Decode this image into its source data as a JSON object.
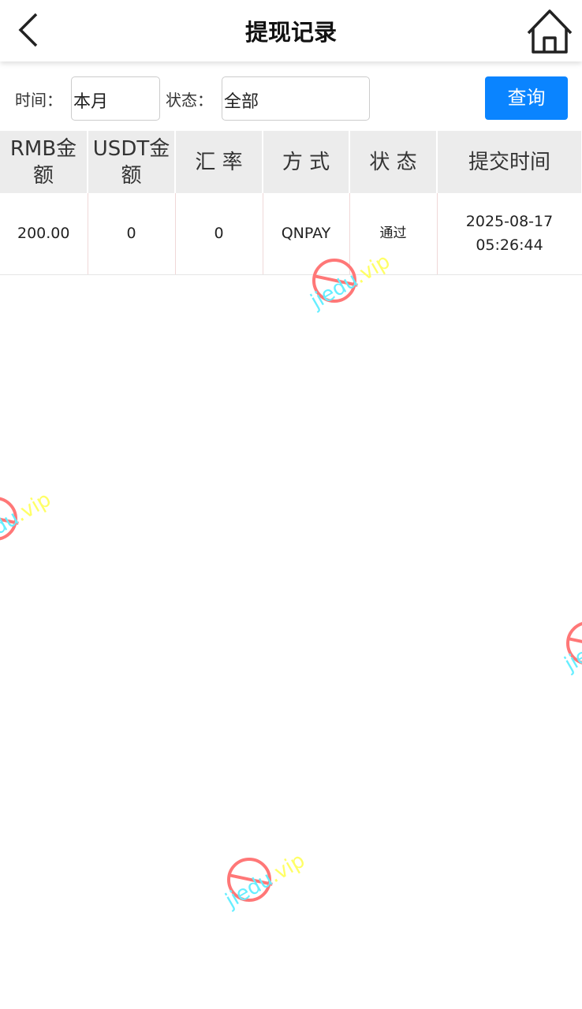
{
  "header": {
    "title": "提现记录",
    "back_icon": "chevron-left-icon",
    "home_icon": "home-icon"
  },
  "filter": {
    "time_label": "时间：",
    "time_value": "本月",
    "status_label": "状态：",
    "status_value": "全部",
    "query_button": "查询",
    "accent": "#0a84ff"
  },
  "table": {
    "headers": [
      "RMB金额",
      "USDT金额",
      "汇 率",
      "方 式",
      "状 态",
      "提交时间"
    ],
    "rows": [
      {
        "rmb": "200.00",
        "usdt": "0",
        "rate": "0",
        "method": "QNPAY",
        "status": "通过",
        "date": "2025-08-17",
        "time": "05:26:44"
      }
    ]
  },
  "watermark": {
    "part1": "jiedu",
    "part2": ".vip"
  }
}
